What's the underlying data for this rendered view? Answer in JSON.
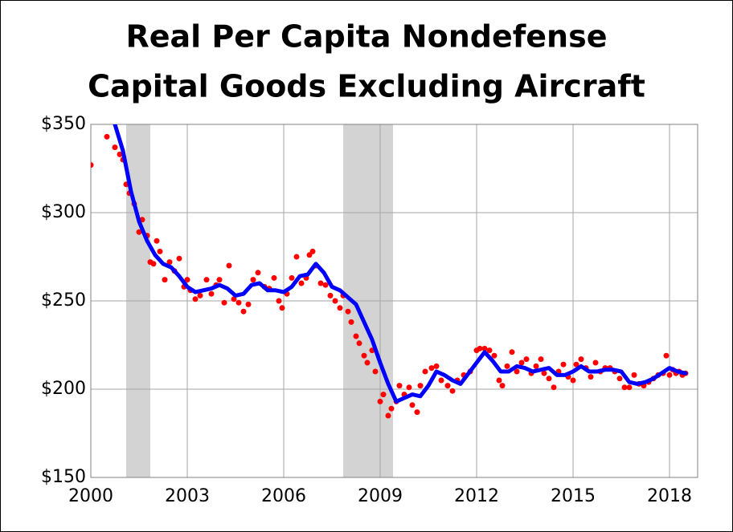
{
  "chart_data": {
    "type": "scatter_line",
    "title": [
      "Real Per Capita Nondefense",
      "Capital Goods Excluding Aircraft"
    ],
    "xlim": [
      2000,
      2018.875
    ],
    "ylim": [
      150,
      350
    ],
    "xticks": [
      2000,
      2003,
      2006,
      2009,
      2012,
      2015,
      2018
    ],
    "yticks": [
      {
        "value": 150,
        "label": "$150"
      },
      {
        "value": 200,
        "label": "$200"
      },
      {
        "value": 250,
        "label": "$250"
      },
      {
        "value": 300,
        "label": "$300"
      },
      {
        "value": 350,
        "label": "$350"
      }
    ],
    "grid": true,
    "shaded_regions": [
      [
        2001.1,
        2001.85
      ],
      [
        2007.85,
        2009.4
      ]
    ],
    "shade_color": "#d3d3d3",
    "series": [
      {
        "type": "scatter",
        "color": "#ff0000",
        "x": [
          2000.0,
          2000.5,
          2000.75,
          2000.9,
          2001.0,
          2001.1,
          2001.2,
          2001.35,
          2001.5,
          2001.6,
          2001.75,
          2001.85,
          2001.95,
          2002.05,
          2002.15,
          2002.3,
          2002.45,
          2002.6,
          2002.75,
          2002.9,
          2003.0,
          2003.1,
          2003.25,
          2003.4,
          2003.6,
          2003.75,
          2003.9,
          2004.0,
          2004.15,
          2004.3,
          2004.45,
          2004.6,
          2004.75,
          2004.9,
          2005.05,
          2005.2,
          2005.4,
          2005.55,
          2005.7,
          2005.85,
          2005.95,
          2006.1,
          2006.25,
          2006.4,
          2006.55,
          2006.7,
          2006.8,
          2006.9,
          2007.0,
          2007.15,
          2007.3,
          2007.45,
          2007.6,
          2007.75,
          2007.85,
          2008.0,
          2008.1,
          2008.25,
          2008.35,
          2008.5,
          2008.6,
          2008.75,
          2008.85,
          2009.0,
          2009.1,
          2009.25,
          2009.35,
          2009.5,
          2009.6,
          2009.75,
          2009.9,
          2010.0,
          2010.15,
          2010.25,
          2010.4,
          2010.6,
          2010.75,
          2010.9,
          2011.1,
          2011.25,
          2011.4,
          2011.6,
          2011.8,
          2012.0,
          2012.1,
          2012.25,
          2012.4,
          2012.55,
          2012.7,
          2012.8,
          2012.95,
          2013.1,
          2013.25,
          2013.4,
          2013.55,
          2013.7,
          2013.85,
          2014.0,
          2014.1,
          2014.25,
          2014.4,
          2014.55,
          2014.7,
          2014.85,
          2015.0,
          2015.1,
          2015.25,
          2015.4,
          2015.55,
          2015.7,
          2015.85,
          2016.0,
          2016.15,
          2016.3,
          2016.45,
          2016.6,
          2016.75,
          2016.9,
          2017.05,
          2017.2,
          2017.35,
          2017.5,
          2017.65,
          2017.8,
          2017.9,
          2018.0,
          2018.1,
          2018.2,
          2018.3,
          2018.4,
          2018.5
        ],
        "values": [
          327,
          343,
          337,
          333,
          330,
          316,
          311,
          305,
          289,
          296,
          287,
          272,
          271,
          284,
          278,
          262,
          272,
          267,
          274,
          258,
          262,
          256,
          251,
          253,
          262,
          254,
          259,
          262,
          249,
          270,
          251,
          249,
          244,
          248,
          262,
          266,
          258,
          257,
          263,
          250,
          246,
          254,
          263,
          275,
          260,
          263,
          276,
          278,
          270,
          260,
          259,
          253,
          250,
          246,
          253,
          244,
          238,
          230,
          226,
          219,
          215,
          222,
          210,
          193,
          197,
          185,
          189,
          193,
          202,
          197,
          201,
          191,
          187,
          202,
          210,
          212,
          213,
          205,
          202,
          199,
          205,
          208,
          210,
          222,
          223,
          223,
          222,
          219,
          205,
          202,
          213,
          221,
          210,
          215,
          217,
          209,
          213,
          217,
          209,
          206,
          201,
          210,
          214,
          207,
          205,
          214,
          217,
          212,
          207,
          215,
          210,
          212,
          212,
          210,
          206,
          201,
          201,
          208,
          203,
          202,
          204,
          206,
          208,
          209,
          219,
          208,
          211,
          209,
          210,
          208,
          209
        ]
      },
      {
        "type": "line",
        "color": "#0000ff",
        "x": [
          2000.75,
          2001.0,
          2001.25,
          2001.5,
          2001.75,
          2002.0,
          2002.25,
          2002.5,
          2002.75,
          2003.0,
          2003.25,
          2003.5,
          2003.75,
          2004.0,
          2004.25,
          2004.5,
          2004.75,
          2005.0,
          2005.25,
          2005.5,
          2005.75,
          2006.0,
          2006.25,
          2006.5,
          2006.75,
          2007.0,
          2007.25,
          2007.5,
          2007.75,
          2008.0,
          2008.25,
          2008.5,
          2008.75,
          2009.0,
          2009.25,
          2009.5,
          2009.75,
          2010.0,
          2010.25,
          2010.5,
          2010.75,
          2011.0,
          2011.25,
          2011.5,
          2011.75,
          2012.0,
          2012.25,
          2012.5,
          2012.75,
          2013.0,
          2013.25,
          2013.5,
          2013.75,
          2014.0,
          2014.25,
          2014.5,
          2014.75,
          2015.0,
          2015.25,
          2015.5,
          2015.75,
          2016.0,
          2016.25,
          2016.5,
          2016.75,
          2017.0,
          2017.25,
          2017.5,
          2017.75,
          2018.0,
          2018.25,
          2018.5
        ],
        "values": [
          350,
          335,
          312,
          295,
          284,
          276,
          271,
          269,
          264,
          258,
          255,
          256,
          257,
          259,
          257,
          253,
          254,
          259,
          260,
          256,
          256,
          255,
          258,
          264,
          265,
          271,
          266,
          258,
          256,
          252,
          248,
          238,
          228,
          215,
          203,
          193,
          195,
          197,
          196,
          202,
          210,
          208,
          205,
          203,
          209,
          215,
          221,
          216,
          210,
          210,
          213,
          212,
          210,
          211,
          212,
          208,
          208,
          210,
          213,
          210,
          210,
          211,
          211,
          210,
          204,
          203,
          204,
          206,
          209,
          212,
          210,
          209
        ]
      }
    ]
  }
}
